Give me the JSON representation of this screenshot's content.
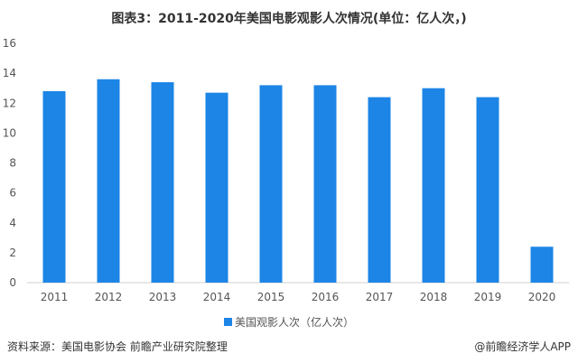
{
  "chart_data": {
    "type": "bar",
    "title": "图表3：2011-2020年美国电影观影人次情况(单位：亿人次，)",
    "categories": [
      "2011",
      "2012",
      "2013",
      "2014",
      "2015",
      "2016",
      "2017",
      "2018",
      "2019",
      "2020"
    ],
    "series": [
      {
        "name": "美国观影人次（亿人次）",
        "values": [
          12.8,
          13.6,
          13.4,
          12.7,
          13.2,
          13.2,
          12.4,
          13.0,
          12.4,
          2.4
        ]
      }
    ],
    "ylim": [
      0,
      16
    ],
    "yticks": [
      0,
      2,
      4,
      6,
      8,
      10,
      12,
      14,
      16
    ],
    "grid": false,
    "legend": "bottom",
    "bar_color": "#1c85e6"
  },
  "footer": {
    "source": "资料来源：美国电影协会 前瞻产业研究院整理",
    "brand": "@前瞻经济学人APP"
  }
}
